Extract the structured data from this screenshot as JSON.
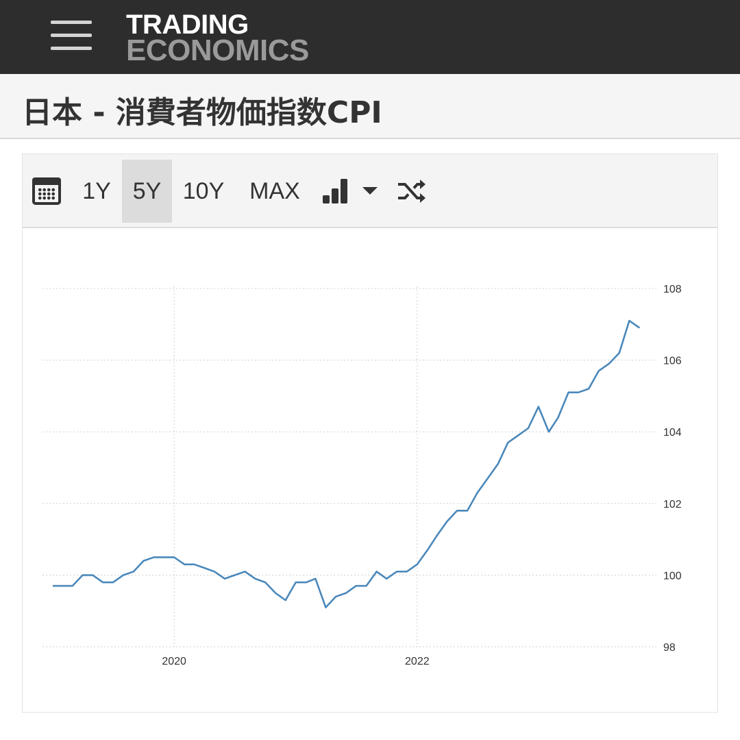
{
  "header": {
    "menu_icon": "hamburger-menu-icon",
    "logo_line1": "TRADING",
    "logo_line2": "ECONOMICS"
  },
  "page": {
    "title": "日本 - 消費者物価指数CPI"
  },
  "toolbar": {
    "calendar_icon": "calendar-icon",
    "ranges": [
      {
        "label": "1Y",
        "active": false
      },
      {
        "label": "5Y",
        "active": true
      },
      {
        "label": "10Y",
        "active": false
      },
      {
        "label": "MAX",
        "active": false
      }
    ],
    "chart_type_icon": "bar-chart-icon",
    "dropdown_icon": "caret-down-icon",
    "compare_icon": "shuffle-icon"
  },
  "chart_data": {
    "type": "line",
    "title": "",
    "xlabel": "",
    "ylabel": "",
    "x_ticks": [
      "2020",
      "2022"
    ],
    "y_ticks": [
      98,
      100,
      102,
      104,
      106,
      108
    ],
    "ylim": [
      98,
      108
    ],
    "xlim": [
      "2018-12-01",
      "2023-12-01"
    ],
    "grid": true,
    "y_axis_side": "right",
    "line_color": "#4a88bb",
    "series": [
      {
        "x": [
          "2019-01",
          "2019-02",
          "2019-03",
          "2019-04",
          "2019-05",
          "2019-06",
          "2019-07",
          "2019-08",
          "2019-09",
          "2019-10",
          "2019-11",
          "2019-12",
          "2020-01",
          "2020-02",
          "2020-03",
          "2020-04",
          "2020-05",
          "2020-06",
          "2020-07",
          "2020-08",
          "2020-09",
          "2020-10",
          "2020-11",
          "2020-12",
          "2021-01",
          "2021-02",
          "2021-03",
          "2021-04",
          "2021-05",
          "2021-06",
          "2021-07",
          "2021-08",
          "2021-09",
          "2021-10",
          "2021-11",
          "2021-12",
          "2022-01",
          "2022-02",
          "2022-03",
          "2022-04",
          "2022-05",
          "2022-06",
          "2022-07",
          "2022-08",
          "2022-09",
          "2022-10",
          "2022-11",
          "2022-12",
          "2023-01",
          "2023-02",
          "2023-03",
          "2023-04",
          "2023-05",
          "2023-06",
          "2023-07",
          "2023-08",
          "2023-09",
          "2023-10",
          "2023-11"
        ],
        "values": [
          99.7,
          99.7,
          99.7,
          100.0,
          100.0,
          99.8,
          99.8,
          100.0,
          100.1,
          100.4,
          100.5,
          100.5,
          100.5,
          100.3,
          100.3,
          100.2,
          100.1,
          99.9,
          100.0,
          100.1,
          99.9,
          99.8,
          99.5,
          99.3,
          99.8,
          99.8,
          99.9,
          99.1,
          99.4,
          99.5,
          99.7,
          99.7,
          100.1,
          99.9,
          100.1,
          100.1,
          100.3,
          100.7,
          101.1,
          101.5,
          101.8,
          101.8,
          102.3,
          102.7,
          103.1,
          103.7,
          103.9,
          104.1,
          104.7,
          104.0,
          104.4,
          105.1,
          105.1,
          105.2,
          105.7,
          105.9,
          106.2,
          107.1,
          106.9
        ]
      }
    ]
  }
}
